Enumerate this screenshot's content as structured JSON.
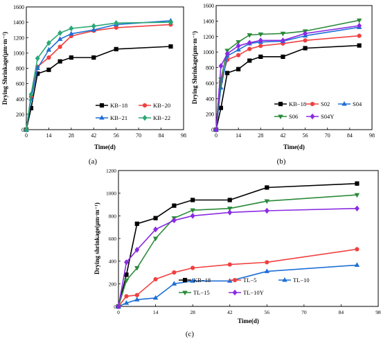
{
  "chart_data": [
    {
      "panel_label": "(a)",
      "type": "line",
      "xlabel": "Time(d)",
      "ylabel": "Drying Shrinkage(μm·m⁻¹)",
      "xlim": [
        0,
        98
      ],
      "ylim": [
        0,
        1600
      ],
      "xticks": [
        "0",
        "14",
        "28",
        "42",
        "56",
        "70",
        "84",
        "98"
      ],
      "yticks": [
        "0",
        "200",
        "400",
        "600",
        "800",
        "1000",
        "1200",
        "1400",
        "1600"
      ],
      "legend_columns": 2,
      "series": [
        {
          "name": "KB−18",
          "color": "#000000",
          "marker": "square",
          "points": [
            [
              0,
              0
            ],
            [
              3,
              280
            ],
            [
              7,
              730
            ],
            [
              14,
              780
            ],
            [
              21,
              890
            ],
            [
              28,
              940
            ],
            [
              42,
              940
            ],
            [
              56,
              1050
            ],
            [
              90,
              1085
            ]
          ]
        },
        {
          "name": "KB−20",
          "color": "#f04040",
          "marker": "circle",
          "points": [
            [
              0,
              0
            ],
            [
              3,
              430
            ],
            [
              7,
              820
            ],
            [
              14,
              940
            ],
            [
              21,
              1080
            ],
            [
              28,
              1220
            ],
            [
              42,
              1290
            ],
            [
              56,
              1330
            ],
            [
              90,
              1370
            ]
          ]
        },
        {
          "name": "KB−21",
          "color": "#1e6fd6",
          "marker": "triangle",
          "points": [
            [
              0,
              0
            ],
            [
              3,
              400
            ],
            [
              7,
              800
            ],
            [
              14,
              1040
            ],
            [
              21,
              1180
            ],
            [
              28,
              1250
            ],
            [
              42,
              1300
            ],
            [
              56,
              1370
            ],
            [
              90,
              1420
            ]
          ]
        },
        {
          "name": "KB−22",
          "color": "#2aa876",
          "marker": "diamond",
          "points": [
            [
              0,
              0
            ],
            [
              3,
              460
            ],
            [
              7,
              930
            ],
            [
              14,
              1130
            ],
            [
              21,
              1260
            ],
            [
              28,
              1320
            ],
            [
              42,
              1350
            ],
            [
              56,
              1390
            ],
            [
              90,
              1400
            ]
          ]
        }
      ]
    },
    {
      "panel_label": "(b)",
      "type": "line",
      "xlabel": "Time(d)",
      "ylabel": "Drying Shrinkage(μm·m⁻¹)",
      "xlim": [
        0,
        98
      ],
      "ylim": [
        0,
        1600
      ],
      "xticks": [
        "0",
        "14",
        "28",
        "42",
        "56",
        "70",
        "84",
        "98"
      ],
      "yticks": [
        "0",
        "200",
        "400",
        "600",
        "800",
        "1000",
        "1200",
        "1400",
        "1600"
      ],
      "legend_columns": 3,
      "series": [
        {
          "name": "KB−18",
          "color": "#000000",
          "marker": "square",
          "points": [
            [
              0,
              0
            ],
            [
              3,
              280
            ],
            [
              7,
              730
            ],
            [
              14,
              780
            ],
            [
              21,
              890
            ],
            [
              28,
              940
            ],
            [
              42,
              940
            ],
            [
              56,
              1050
            ],
            [
              90,
              1085
            ]
          ]
        },
        {
          "name": "S02",
          "color": "#f04040",
          "marker": "circle",
          "points": [
            [
              0,
              0
            ],
            [
              3,
              620
            ],
            [
              7,
              900
            ],
            [
              14,
              960
            ],
            [
              21,
              1040
            ],
            [
              28,
              1080
            ],
            [
              42,
              1110
            ],
            [
              56,
              1150
            ],
            [
              90,
              1210
            ]
          ]
        },
        {
          "name": "S04",
          "color": "#1e6fd6",
          "marker": "triangle",
          "points": [
            [
              0,
              0
            ],
            [
              3,
              540
            ],
            [
              7,
              950
            ],
            [
              14,
              1030
            ],
            [
              21,
              1110
            ],
            [
              28,
              1130
            ],
            [
              42,
              1140
            ],
            [
              56,
              1210
            ],
            [
              90,
              1320
            ]
          ]
        },
        {
          "name": "S06",
          "color": "#2a8a3a",
          "marker": "triangle-down",
          "points": [
            [
              0,
              0
            ],
            [
              3,
              650
            ],
            [
              7,
              1020
            ],
            [
              14,
              1130
            ],
            [
              21,
              1220
            ],
            [
              28,
              1230
            ],
            [
              42,
              1240
            ],
            [
              56,
              1270
            ],
            [
              90,
              1410
            ]
          ]
        },
        {
          "name": "S04Y",
          "color": "#8a2be2",
          "marker": "diamond",
          "points": [
            [
              0,
              0
            ],
            [
              3,
              820
            ],
            [
              7,
              980
            ],
            [
              14,
              1080
            ],
            [
              21,
              1120
            ],
            [
              28,
              1150
            ],
            [
              42,
              1150
            ],
            [
              56,
              1240
            ],
            [
              90,
              1340
            ]
          ]
        }
      ]
    },
    {
      "panel_label": "(c)",
      "type": "line",
      "xlabel": "Time(d)",
      "ylabel": "Drying shrinkage(μm·m⁻¹)",
      "xlim": [
        0,
        98
      ],
      "ylim": [
        0,
        1200
      ],
      "xticks": [
        "0",
        "14",
        "28",
        "42",
        "56",
        "70",
        "84",
        "98"
      ],
      "yticks": [
        "0",
        "200",
        "400",
        "600",
        "800",
        "1000",
        "1200"
      ],
      "legend_columns": 3,
      "series": [
        {
          "name": "KB−18",
          "color": "#000000",
          "marker": "square",
          "points": [
            [
              0,
              0
            ],
            [
              3,
              280
            ],
            [
              7,
              730
            ],
            [
              14,
              780
            ],
            [
              21,
              890
            ],
            [
              28,
              940
            ],
            [
              42,
              940
            ],
            [
              56,
              1050
            ],
            [
              90,
              1085
            ]
          ]
        },
        {
          "name": "TL−5",
          "color": "#f04040",
          "marker": "circle",
          "points": [
            [
              0,
              0
            ],
            [
              3,
              90
            ],
            [
              7,
              100
            ],
            [
              14,
              240
            ],
            [
              21,
              300
            ],
            [
              28,
              340
            ],
            [
              42,
              370
            ],
            [
              56,
              390
            ],
            [
              90,
              505
            ]
          ]
        },
        {
          "name": "TL−10",
          "color": "#1e6fd6",
          "marker": "triangle",
          "points": [
            [
              0,
              0
            ],
            [
              3,
              30
            ],
            [
              7,
              60
            ],
            [
              14,
              75
            ],
            [
              21,
              200
            ],
            [
              28,
              225
            ],
            [
              42,
              225
            ],
            [
              56,
              310
            ],
            [
              90,
              365
            ]
          ]
        },
        {
          "name": "TL−15",
          "color": "#2a8a3a",
          "marker": "triangle-down",
          "points": [
            [
              0,
              0
            ],
            [
              3,
              230
            ],
            [
              7,
              340
            ],
            [
              14,
              600
            ],
            [
              21,
              780
            ],
            [
              28,
              850
            ],
            [
              42,
              865
            ],
            [
              56,
              930
            ],
            [
              90,
              985
            ]
          ]
        },
        {
          "name": "TL−10Y",
          "color": "#8a2be2",
          "marker": "diamond",
          "points": [
            [
              0,
              0
            ],
            [
              3,
              390
            ],
            [
              7,
              500
            ],
            [
              14,
              680
            ],
            [
              21,
              760
            ],
            [
              28,
              800
            ],
            [
              42,
              830
            ],
            [
              56,
              845
            ],
            [
              90,
              865
            ]
          ]
        }
      ]
    }
  ]
}
